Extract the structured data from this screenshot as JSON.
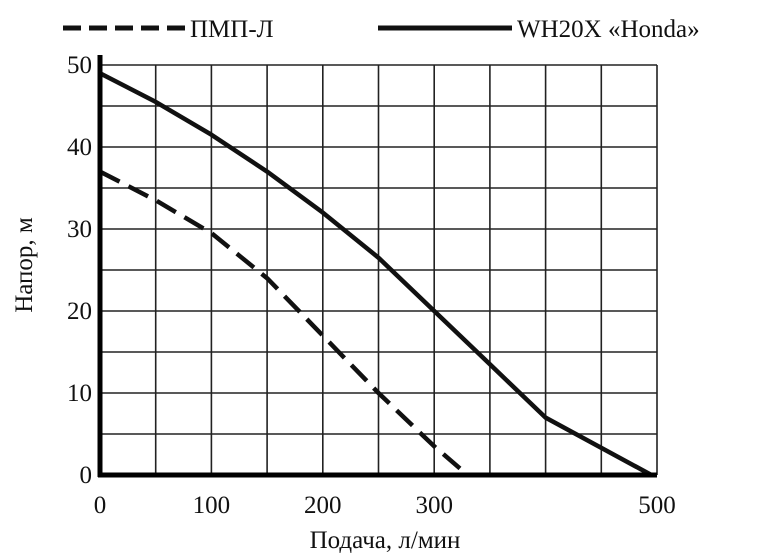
{
  "chart_data": {
    "type": "line",
    "title": "",
    "xlabel": "Подача, л/мин",
    "ylabel": "Напор, м",
    "xlim": [
      0,
      500
    ],
    "ylim": [
      0,
      50
    ],
    "x_ticks": [
      "0",
      "100",
      "200",
      "300",
      "500"
    ],
    "y_ticks": [
      "0",
      "10",
      "20",
      "30",
      "40",
      "50"
    ],
    "grid": true,
    "legend_position": "top",
    "series": [
      {
        "name": "ПМП-Л",
        "style": "dashed",
        "color": "#111111",
        "x": [
          0,
          50,
          100,
          150,
          200,
          250,
          300,
          330
        ],
        "y": [
          37,
          33.5,
          29.5,
          24,
          17,
          10,
          3.5,
          0
        ]
      },
      {
        "name": "WH20X «Honda»",
        "style": "solid",
        "color": "#111111",
        "x": [
          0,
          50,
          100,
          150,
          200,
          250,
          300,
          350,
          400,
          495
        ],
        "y": [
          49,
          45.5,
          41.5,
          37,
          32,
          26.5,
          20,
          13.5,
          7,
          0
        ]
      }
    ]
  }
}
